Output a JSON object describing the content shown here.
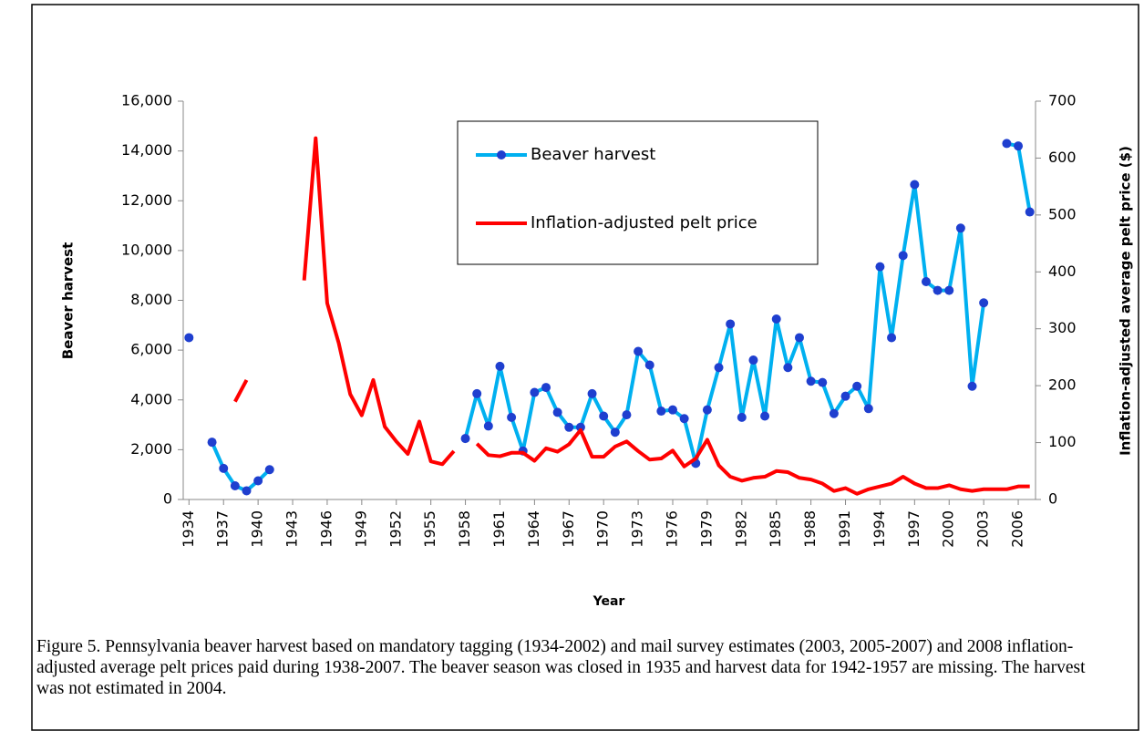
{
  "chart_data": {
    "type": "line",
    "x": [
      1934,
      1935,
      1936,
      1937,
      1938,
      1939,
      1940,
      1941,
      1942,
      1943,
      1944,
      1945,
      1946,
      1947,
      1948,
      1949,
      1950,
      1951,
      1952,
      1953,
      1954,
      1955,
      1956,
      1957,
      1958,
      1959,
      1960,
      1961,
      1962,
      1963,
      1964,
      1965,
      1966,
      1967,
      1968,
      1969,
      1970,
      1971,
      1972,
      1973,
      1974,
      1975,
      1976,
      1977,
      1978,
      1979,
      1980,
      1981,
      1982,
      1983,
      1984,
      1985,
      1986,
      1987,
      1988,
      1989,
      1990,
      1991,
      1992,
      1993,
      1994,
      1995,
      1996,
      1997,
      1998,
      1999,
      2000,
      2001,
      2002,
      2003,
      2004,
      2005,
      2006,
      2007
    ],
    "series": [
      {
        "name": "Beaver harvest",
        "color": "#00b0f0",
        "marker_color": "#1f3fcf",
        "values": [
          6500,
          null,
          2300,
          1250,
          550,
          350,
          750,
          1200,
          null,
          null,
          null,
          null,
          null,
          null,
          null,
          null,
          null,
          null,
          null,
          null,
          null,
          null,
          null,
          null,
          2450,
          4250,
          2950,
          5350,
          3300,
          1950,
          4300,
          4500,
          3500,
          2900,
          2900,
          4250,
          3350,
          2700,
          3400,
          5950,
          5400,
          3550,
          3600,
          3250,
          1450,
          3600,
          5300,
          7050,
          3300,
          5600,
          3350,
          7250,
          5300,
          6500,
          4750,
          4700,
          3450,
          4150,
          4550,
          3650,
          9350,
          6500,
          9800,
          12650,
          8750,
          8400,
          8400,
          10900,
          4550,
          7900,
          null,
          14300,
          14200,
          11550
        ]
      },
      {
        "name": "Inflation-adjusted pelt price",
        "color": "#ff0000",
        "axis": "y2",
        "values": [
          null,
          null,
          null,
          null,
          172,
          210,
          null,
          null,
          null,
          null,
          385,
          635,
          345,
          275,
          185,
          148,
          210,
          128,
          102,
          80,
          137,
          67,
          62,
          85,
          null,
          98,
          78,
          76,
          82,
          82,
          68,
          90,
          84,
          97,
          122,
          75,
          75,
          93,
          102,
          85,
          70,
          72,
          86,
          58,
          72,
          105,
          60,
          40,
          33,
          38,
          40,
          50,
          48,
          38,
          35,
          28,
          15,
          20,
          10,
          18,
          23,
          28,
          40,
          28,
          20,
          20,
          25,
          18,
          15,
          18,
          18,
          18,
          23,
          23
        ]
      }
    ],
    "xlim": [
      1933.5,
      2007.5
    ],
    "xticks": [
      1934,
      1937,
      1940,
      1943,
      1946,
      1949,
      1952,
      1955,
      1958,
      1961,
      1964,
      1967,
      1970,
      1973,
      1976,
      1979,
      1982,
      1985,
      1988,
      1991,
      1994,
      1997,
      2000,
      2003,
      2006
    ],
    "ylim": [
      0,
      16000
    ],
    "yticks": [
      0,
      {
        "value": 2000,
        "label": "2,000"
      },
      {
        "value": 4000,
        "label": "4,000"
      },
      {
        "value": 6000,
        "label": "6,000"
      },
      {
        "value": 8000,
        "label": "8,000"
      },
      {
        "value": 10000,
        "label": "10,000"
      },
      {
        "value": 12000,
        "label": "12,000"
      },
      {
        "value": 14000,
        "label": "14,000"
      },
      {
        "value": 16000,
        "label": "16,000"
      }
    ],
    "y2lim": [
      0,
      700
    ],
    "y2ticks": [
      0,
      100,
      200,
      300,
      400,
      500,
      600,
      700
    ],
    "xlabel": "Year",
    "ylabel": "Beaver harvest",
    "y2label": "Inflation-adjusted average pelt price ($)",
    "legend": "top-center",
    "caption": "Figure 5.  Pennsylvania beaver harvest based on mandatory tagging (1934-2002) and mail survey estimates (2003, 2005-2007) and 2008 inflation-adjusted average pelt prices paid during 1938-2007.  The beaver season was closed in 1935 and harvest data for 1942-1957 are missing.  The harvest was not estimated in 2004."
  }
}
